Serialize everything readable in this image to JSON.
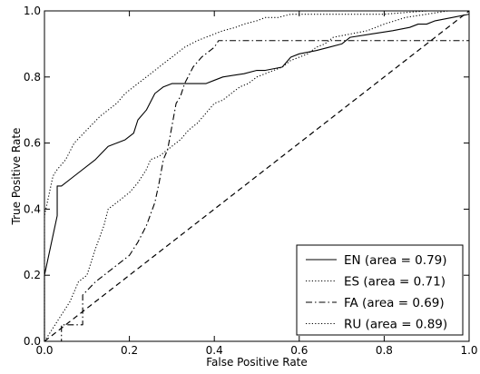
{
  "chart_data": {
    "type": "line",
    "title": "",
    "xlabel": "False Positive Rate",
    "ylabel": "True Positive Rate",
    "xlim": [
      0,
      1
    ],
    "ylim": [
      0,
      1
    ],
    "xticks": [
      "0.0",
      "0.2",
      "0.4",
      "0.6",
      "0.8",
      "1.0"
    ],
    "yticks": [
      "0.0",
      "0.2",
      "0.4",
      "0.6",
      "0.8",
      "1.0"
    ],
    "grid": false,
    "legend_position": "lower-right",
    "series": [
      {
        "name": "EN (area = 0.79)",
        "style": "solid",
        "color": "#000000",
        "x": [
          0,
          0,
          0.03,
          0.03,
          0.04,
          0.07,
          0.12,
          0.15,
          0.17,
          0.19,
          0.21,
          0.22,
          0.24,
          0.26,
          0.28,
          0.3,
          0.33,
          0.36,
          0.38,
          0.4,
          0.42,
          0.47,
          0.5,
          0.52,
          0.56,
          0.58,
          0.6,
          0.64,
          0.67,
          0.7,
          0.72,
          0.77,
          0.82,
          0.86,
          0.88,
          0.9,
          0.92,
          0.96,
          1.0
        ],
        "y": [
          0,
          0.2,
          0.38,
          0.47,
          0.47,
          0.5,
          0.55,
          0.59,
          0.6,
          0.61,
          0.63,
          0.67,
          0.7,
          0.75,
          0.77,
          0.78,
          0.78,
          0.78,
          0.78,
          0.79,
          0.8,
          0.81,
          0.82,
          0.82,
          0.83,
          0.86,
          0.87,
          0.88,
          0.89,
          0.9,
          0.92,
          0.93,
          0.94,
          0.95,
          0.96,
          0.96,
          0.97,
          0.98,
          0.99
        ]
      },
      {
        "name": "ES (area = 0.71)",
        "style": "dotted",
        "color": "#000000",
        "x": [
          0,
          0.02,
          0.04,
          0.05,
          0.06,
          0.08,
          0.1,
          0.12,
          0.14,
          0.15,
          0.17,
          0.2,
          0.22,
          0.24,
          0.25,
          0.27,
          0.29,
          0.3,
          0.32,
          0.34,
          0.36,
          0.38,
          0.4,
          0.42,
          0.44,
          0.46,
          0.48,
          0.5,
          0.52,
          0.54,
          0.56,
          0.58,
          0.6,
          0.62,
          0.64,
          0.66,
          0.68,
          0.72,
          0.76,
          0.8,
          0.85,
          0.9,
          0.95,
          1.0
        ],
        "y": [
          0,
          0.04,
          0.08,
          0.1,
          0.12,
          0.18,
          0.2,
          0.28,
          0.35,
          0.4,
          0.42,
          0.45,
          0.48,
          0.52,
          0.55,
          0.56,
          0.58,
          0.59,
          0.61,
          0.64,
          0.66,
          0.69,
          0.72,
          0.73,
          0.75,
          0.77,
          0.78,
          0.8,
          0.81,
          0.82,
          0.83,
          0.85,
          0.86,
          0.87,
          0.89,
          0.9,
          0.92,
          0.93,
          0.94,
          0.96,
          0.98,
          0.99,
          1.0,
          1.0
        ]
      },
      {
        "name": "FA (area = 0.69)",
        "style": "dashdot",
        "color": "#000000",
        "x": [
          0,
          0.04,
          0.04,
          0.09,
          0.09,
          0.12,
          0.16,
          0.2,
          0.22,
          0.24,
          0.26,
          0.27,
          0.28,
          0.29,
          0.3,
          0.31,
          0.32,
          0.33,
          0.35,
          0.37,
          0.4,
          0.41,
          0.43,
          1.0
        ],
        "y": [
          0,
          0,
          0.05,
          0.05,
          0.14,
          0.18,
          0.22,
          0.26,
          0.3,
          0.35,
          0.42,
          0.48,
          0.55,
          0.58,
          0.65,
          0.72,
          0.74,
          0.78,
          0.83,
          0.86,
          0.89,
          0.91,
          0.91,
          0.91
        ]
      },
      {
        "name": "RU (area = 0.89)",
        "style": "dotted",
        "color": "#000000",
        "x": [
          0,
          0,
          0.02,
          0.03,
          0.05,
          0.07,
          0.1,
          0.13,
          0.15,
          0.17,
          0.19,
          0.21,
          0.23,
          0.25,
          0.27,
          0.29,
          0.31,
          0.33,
          0.36,
          0.38,
          0.4,
          0.42,
          0.45,
          0.47,
          0.5,
          0.52,
          0.55,
          0.58,
          0.62,
          0.65,
          0.7,
          0.8,
          0.9,
          1.0
        ],
        "y": [
          0,
          0.38,
          0.5,
          0.52,
          0.55,
          0.6,
          0.64,
          0.68,
          0.7,
          0.72,
          0.75,
          0.77,
          0.79,
          0.81,
          0.83,
          0.85,
          0.87,
          0.89,
          0.91,
          0.92,
          0.93,
          0.94,
          0.95,
          0.96,
          0.97,
          0.98,
          0.98,
          0.99,
          0.99,
          0.99,
          0.99,
          0.99,
          1.0,
          1.0
        ]
      }
    ],
    "reference_line": {
      "style": "dashed",
      "color": "#000000",
      "x": [
        0,
        1
      ],
      "y": [
        0,
        1
      ]
    }
  }
}
